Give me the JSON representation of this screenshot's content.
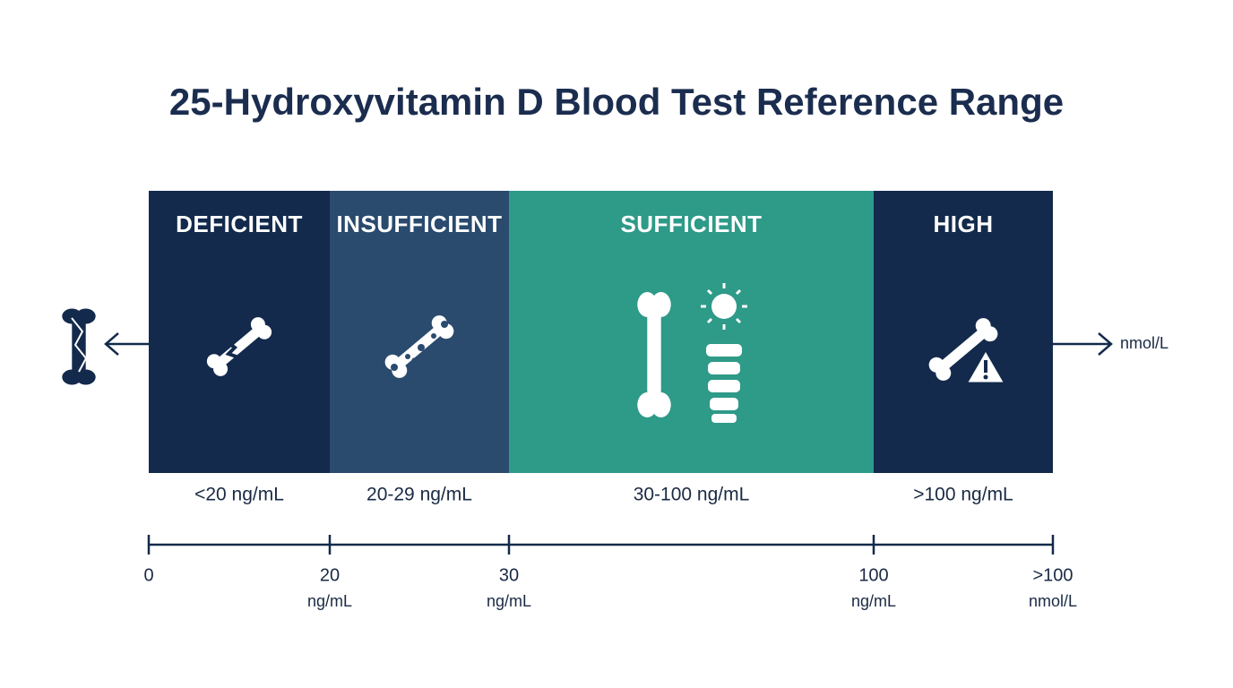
{
  "title": "25-Hydroxyvitamin D Blood Test Reference Range",
  "segments": [
    {
      "label": "DEFICIENT",
      "range": "<20 ng/mL"
    },
    {
      "label": "INSUFFICIENT",
      "range": "20-29 ng/mL"
    },
    {
      "label": "SUFFICIENT",
      "range": "30-100 ng/mL"
    },
    {
      "label": "HIGH",
      "range": ">100 ng/mL"
    }
  ],
  "axis": {
    "unit": "nmol/L",
    "ticks": [
      {
        "value": "0"
      },
      {
        "value": "20",
        "unit": "ng/mL"
      },
      {
        "value": "30",
        "unit": "ng/mL"
      },
      {
        "value": "100",
        "unit": "ng/mL"
      },
      {
        "value": ">100",
        "unit": "nmol/L"
      }
    ]
  }
}
